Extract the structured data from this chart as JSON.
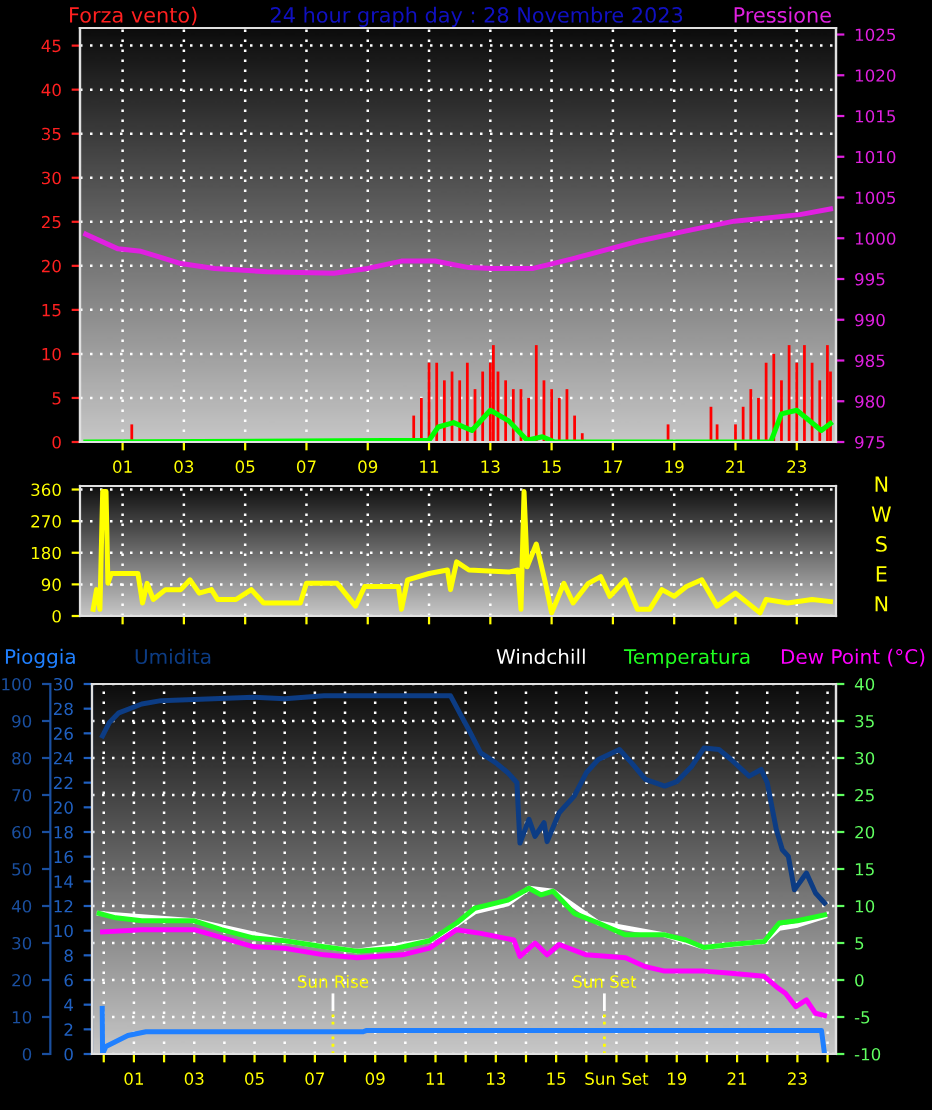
{
  "chart_data": [
    {
      "type": "bar",
      "title": "24 hour graph day : 28 Novembre 2023",
      "ylabel": "Forza vento)",
      "y2label": "Pressione",
      "xlim": [
        -0.39,
        24.28
      ],
      "xticks": [
        {
          "value": 1,
          "label": "01"
        },
        {
          "value": 3,
          "label": "03"
        },
        {
          "value": 5,
          "label": "05"
        },
        {
          "value": 7,
          "label": "07"
        },
        {
          "value": 9,
          "label": "09"
        },
        {
          "value": 11,
          "label": "11"
        },
        {
          "value": 13,
          "label": "13"
        },
        {
          "value": 15,
          "label": "15"
        },
        {
          "value": 17,
          "label": "17"
        },
        {
          "value": 19,
          "label": "19"
        },
        {
          "value": 21,
          "label": "21"
        },
        {
          "value": 23,
          "label": "23"
        }
      ],
      "ylim": [
        0,
        47
      ],
      "yticks": [
        0,
        5,
        10,
        15,
        20,
        25,
        30,
        35,
        40,
        45
      ],
      "y2lim": [
        975,
        1025.8
      ],
      "y2ticks": [
        975,
        980,
        985,
        990,
        995,
        1000,
        1005,
        1010,
        1015,
        1020,
        1025
      ],
      "grid": true,
      "series": [
        {
          "type": "bar",
          "color": "#ff0000",
          "x": [
            1.3,
            10.5,
            10.75,
            11.0,
            11.25,
            11.5,
            11.75,
            12.0,
            12.25,
            12.5,
            12.75,
            13.0,
            13.1,
            13.25,
            13.5,
            13.75,
            14.0,
            14.25,
            14.5,
            14.75,
            15.0,
            15.25,
            15.5,
            15.75,
            16.0,
            18.8,
            20.2,
            20.4,
            21.0,
            21.25,
            21.5,
            21.75,
            22.0,
            22.25,
            22.5,
            22.75,
            23.0,
            23.25,
            23.5,
            23.75,
            24.0,
            24.1
          ],
          "values": [
            2,
            3,
            5,
            9,
            9,
            7,
            8,
            7,
            9,
            6,
            8,
            9,
            11,
            8,
            7,
            6,
            6,
            5,
            11,
            7,
            6,
            5,
            6,
            3,
            1,
            2,
            4,
            2,
            2,
            4,
            6,
            5,
            9,
            10,
            7,
            11,
            9,
            11,
            9,
            7,
            11,
            8
          ]
        },
        {
          "type": "line",
          "color": "#00ff00",
          "x": [
            -0.2,
            11.0,
            11.3,
            11.8,
            12.4,
            13.0,
            13.6,
            14.2,
            14.7,
            15.1,
            15.7,
            22.15,
            22.5,
            23.0,
            23.8,
            24.1
          ],
          "values": [
            0,
            0.2,
            1.7,
            2.2,
            1.3,
            3.6,
            2.4,
            0.2,
            0.6,
            0,
            0,
            0,
            3.2,
            3.6,
            1.3,
            2.1
          ]
        },
        {
          "type": "line",
          "axis": "y2",
          "color": "#e020e0",
          "x": [
            -0.2,
            0.85,
            1.6,
            2.9,
            4.0,
            5.7,
            7.9,
            9.0,
            10.1,
            11.2,
            12.3,
            13.1,
            14.4,
            15.7,
            17.9,
            19.4,
            20.96,
            23.1,
            24.1
          ],
          "values": [
            1000.5,
            998.7,
            998.4,
            996.9,
            996.3,
            995.9,
            995.7,
            996.3,
            997.2,
            997.2,
            996.4,
            996.3,
            996.3,
            997.5,
            999.7,
            1000.9,
            1002.1,
            1002.9,
            1003.6
          ]
        }
      ]
    },
    {
      "type": "line",
      "xlim": [
        -0.39,
        24.28
      ],
      "xticks": [
        1,
        3,
        5,
        7,
        9,
        11,
        13,
        15,
        17,
        19,
        21,
        23
      ],
      "tick_labels": "y",
      "ylim": [
        0,
        370
      ],
      "yticks": [
        0,
        90,
        180,
        270,
        360
      ],
      "annotations": [
        "N",
        "W",
        "S",
        "E",
        "N"
      ],
      "grid": true,
      "series": [
        {
          "color": "#ffff00",
          "x": [
            0.04,
            0.15,
            0.26,
            0.35,
            0.46,
            0.52,
            0.63,
            1.5,
            1.65,
            1.8,
            2.0,
            2.4,
            2.9,
            3.2,
            3.5,
            3.9,
            4.1,
            4.7,
            5.2,
            5.6,
            6.8,
            7.0,
            8.0,
            8.6,
            8.9,
            10.0,
            10.1,
            10.3,
            11.0,
            11.6,
            11.7,
            11.9,
            12.3,
            13.6,
            13.9,
            14.0,
            14.1,
            14.2,
            14.5,
            14.8,
            15.0,
            15.4,
            15.7,
            16.2,
            16.6,
            16.9,
            17.4,
            17.8,
            18.2,
            18.6,
            19.0,
            19.4,
            19.9,
            20.4,
            21.0,
            21.8,
            22.0,
            22.7,
            23.5,
            24.1
          ],
          "values": [
            19,
            75,
            19,
            354,
            354,
            93,
            121,
            121,
            37,
            93,
            47,
            75,
            75,
            103,
            65,
            75,
            47,
            47,
            75,
            37,
            37,
            93,
            93,
            28,
            84,
            84,
            19,
            103,
            121,
            131,
            75,
            154,
            131,
            125,
            131,
            19,
            354,
            140,
            205,
            93,
            9,
            93,
            37,
            93,
            112,
            56,
            103,
            19,
            19,
            75,
            56,
            84,
            103,
            28,
            65,
            9,
            47,
            37,
            47,
            41
          ]
        }
      ]
    },
    {
      "type": "line",
      "xlim": [
        -0.39,
        24.28
      ],
      "xticks": [
        {
          "value": 0,
          "label": null
        },
        {
          "value": 1,
          "label": "01"
        },
        {
          "value": 2,
          "label": null
        },
        {
          "value": 3,
          "label": "03"
        },
        {
          "value": 4,
          "label": null
        },
        {
          "value": 5,
          "label": "05"
        },
        {
          "value": 6,
          "label": null
        },
        {
          "value": 7,
          "label": "07"
        },
        {
          "value": 8,
          "label": null
        },
        {
          "value": 9,
          "label": "09"
        },
        {
          "value": 10,
          "label": null
        },
        {
          "value": 11,
          "label": "11"
        },
        {
          "value": 12,
          "label": null
        },
        {
          "value": 13,
          "label": "13"
        },
        {
          "value": 14,
          "label": null
        },
        {
          "value": 15,
          "label": "15"
        },
        {
          "value": 16,
          "label": null
        },
        {
          "value": 17,
          "label": "Sun Set"
        },
        {
          "value": 18,
          "label": null
        },
        {
          "value": 19,
          "label": "19"
        },
        {
          "value": 20,
          "label": null
        },
        {
          "value": 21,
          "label": "21"
        },
        {
          "value": 22,
          "label": null
        },
        {
          "value": 23,
          "label": "23"
        },
        {
          "value": 24,
          "label": null
        }
      ],
      "ylim": [
        0,
        100
      ],
      "yticks": [
        0,
        10,
        20,
        30,
        40,
        50,
        60,
        70,
        80,
        90,
        100
      ],
      "y3lim": [
        0,
        30
      ],
      "y3ticks": [
        0,
        2,
        4,
        6,
        8,
        10,
        12,
        14,
        16,
        18,
        20,
        22,
        24,
        26,
        28,
        30
      ],
      "y2lim": [
        -10,
        40
      ],
      "y2ticks": [
        -10,
        -5,
        0,
        5,
        10,
        15,
        20,
        25,
        30,
        35,
        40
      ],
      "grid": true,
      "legend": "top",
      "ref_lines": [
        {
          "axis": "x",
          "value": 7.6,
          "label": "Sun Rise",
          "color": "#ffff00",
          "line_style": "dotted"
        },
        {
          "axis": "x",
          "value": 16.6,
          "label": "Sun Set",
          "color": "#ffff00",
          "line_style": "dotted"
        }
      ],
      "series": [
        {
          "name": "Pioggia",
          "axis": "y3",
          "color": "#2080ff",
          "x": [
            -0.05,
            -0.04,
            0.07,
            0.8,
            1.4,
            8.6,
            8.7,
            23.8,
            23.9
          ],
          "values": [
            3.7,
            0,
            0.6,
            1.5,
            1.8,
            1.8,
            1.9,
            1.9,
            0
          ]
        },
        {
          "name": "Umidita",
          "color": "#0c3c84",
          "x": [
            -0.04,
            0.18,
            0.5,
            1.26,
            1.9,
            4.95,
            6.0,
            7.3,
            11.5,
            11.8,
            12.1,
            12.5,
            13.0,
            13.4,
            13.7,
            13.8,
            14.1,
            14.3,
            14.6,
            14.7,
            15.1,
            15.6,
            16.0,
            16.4,
            17.1,
            17.5,
            17.96,
            18.6,
            19.0,
            19.5,
            19.9,
            20.4,
            20.8,
            21.4,
            21.8,
            22.0,
            22.3,
            22.5,
            22.7,
            22.9,
            23.3,
            23.6,
            23.9
          ],
          "values": [
            86,
            89.5,
            92.2,
            94.6,
            95.5,
            96.4,
            96,
            96.8,
            96.8,
            92.2,
            87.7,
            81.4,
            78.7,
            76,
            73.3,
            57,
            63.4,
            58.8,
            62.5,
            57.4,
            65.2,
            69.7,
            76,
            79.6,
            82.3,
            78.7,
            74.2,
            72.4,
            73.6,
            77.8,
            82.7,
            82.3,
            79.6,
            75.1,
            76.9,
            73.3,
            60.7,
            55.2,
            53.4,
            44.4,
            48.9,
            43.5,
            40.8
          ]
        },
        {
          "name": "Windchill",
          "axis": "y2",
          "color": "#ffffff",
          "x": [
            -0.15,
            3.0,
            6.0,
            8.4,
            10.8,
            11.7,
            12.3,
            13.4,
            14.1,
            14.9,
            16.4,
            18.6,
            19.9,
            21.9,
            22.4,
            23.0,
            23.9
          ],
          "values": [
            9.0,
            8.0,
            5.3,
            3.9,
            5.3,
            7.5,
            9.2,
            10.3,
            12.4,
            12.0,
            7.7,
            6.1,
            4.4,
            5.2,
            7.0,
            7.4,
            8.6
          ]
        },
        {
          "name": "Temperatura",
          "axis": "y2",
          "color": "#20ff20",
          "x": [
            -0.15,
            0.4,
            1.26,
            3.0,
            3.9,
            4.95,
            6.0,
            7.3,
            8.4,
            9.7,
            10.8,
            11.7,
            12.3,
            13.4,
            14.1,
            14.5,
            14.9,
            15.6,
            16.4,
            17.3,
            18.6,
            19.3,
            19.9,
            20.8,
            21.9,
            22.4,
            23.0,
            23.9
          ],
          "values": [
            9.0,
            8.4,
            8.0,
            8.0,
            6.8,
            5.7,
            5.3,
            4.5,
            3.9,
            4.3,
            5.3,
            7.7,
            9.7,
            10.8,
            12.4,
            11.5,
            12.0,
            9.0,
            7.7,
            6.1,
            6.1,
            5.4,
            4.4,
            4.8,
            5.2,
            7.7,
            8.0,
            8.8
          ]
        },
        {
          "name": "Dew Point (°C)",
          "axis": "y2",
          "color": "#ff00ff",
          "x": [
            -0.04,
            1.26,
            3.0,
            4.95,
            6.0,
            7.3,
            8.4,
            9.9,
            10.8,
            11.7,
            12.5,
            13.6,
            13.8,
            14.3,
            14.7,
            15.1,
            16.0,
            17.3,
            17.96,
            18.6,
            19.9,
            20.8,
            21.9,
            22.3,
            22.6,
            22.95,
            23.3,
            23.6,
            23.9
          ],
          "values": [
            6.5,
            6.8,
            6.8,
            4.5,
            4.3,
            3.4,
            3.0,
            3.4,
            4.3,
            6.8,
            6.3,
            5.4,
            3.2,
            5.0,
            3.4,
            4.8,
            3.4,
            3.0,
            1.8,
            1.2,
            1.2,
            0.9,
            0.5,
            -0.9,
            -1.8,
            -3.6,
            -2.7,
            -4.5,
            -4.8
          ]
        }
      ]
    }
  ]
}
